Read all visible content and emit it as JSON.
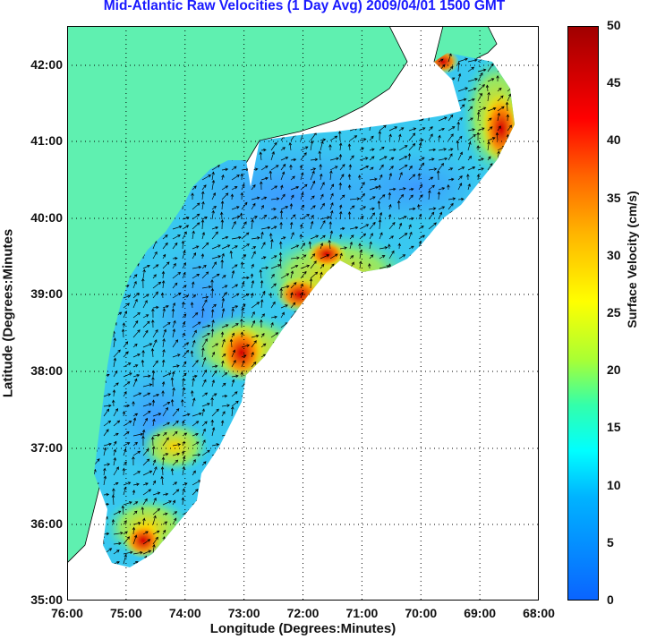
{
  "title": "Mid-Atlantic Raw Velocities (1 Day Avg) 2009/04/01 1500 GMT",
  "xlabel": "Longitude (Degrees:Minutes)",
  "ylabel": "Latitude (Degrees:Minutes",
  "colorbar_label": "Surface Velocity (cm/s)",
  "x_ticks": [
    "76:00",
    "75:00",
    "74:00",
    "73:00",
    "72:00",
    "71:00",
    "70:00",
    "69:00",
    "68:00"
  ],
  "y_ticks": [
    "35:00",
    "36:00",
    "37:00",
    "38:00",
    "39:00",
    "40:00",
    "41:00",
    "42:00"
  ],
  "colorbar_ticks": [
    "0",
    "5",
    "10",
    "15",
    "20",
    "25",
    "30",
    "35",
    "40",
    "45",
    "50"
  ],
  "chart_data": {
    "type": "heatmap",
    "title": "Mid-Atlantic Raw Velocities (1 Day Avg) 2009/04/01 1500 GMT",
    "xlabel": "Longitude (Degrees:Minutes)",
    "ylabel": "Latitude (Degrees:Minutes",
    "x_range": [
      -76,
      -68
    ],
    "y_range": [
      35,
      42.5
    ],
    "colorbar": {
      "label": "Surface Velocity (cm/s)",
      "range": [
        0,
        50
      ],
      "colormap": "jet"
    },
    "grid": "dotted",
    "land_color": "#5ff0b0",
    "hotspots_cm_s": [
      {
        "lon": -72.7,
        "lat": 38.4,
        "value": 42
      },
      {
        "lon": -71.6,
        "lat": 39.5,
        "value": 45
      },
      {
        "lon": -68.8,
        "lat": 41.2,
        "value": 48
      },
      {
        "lon": -69.6,
        "lat": 42.0,
        "value": 45
      },
      {
        "lon": -74.8,
        "lat": 35.8,
        "value": 42
      },
      {
        "lon": -74.5,
        "lat": 37.0,
        "value": 30
      }
    ]
  }
}
